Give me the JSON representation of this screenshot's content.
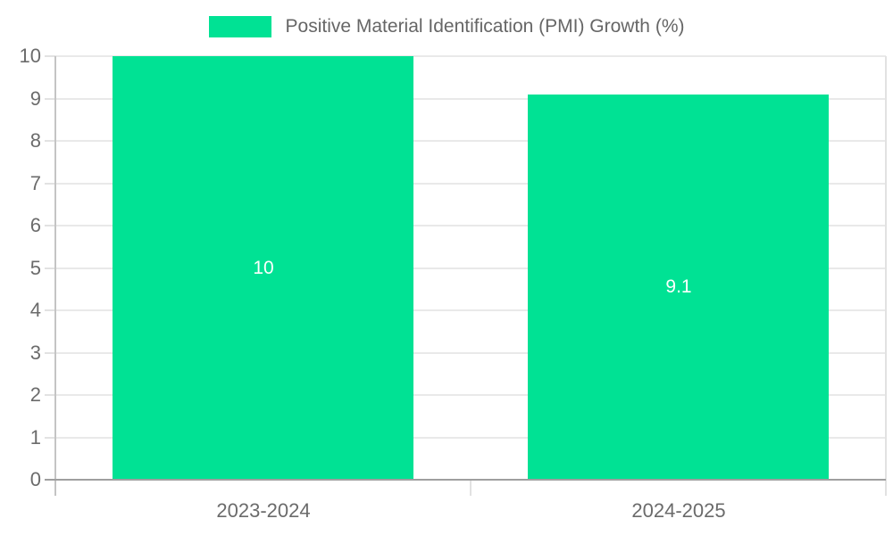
{
  "chart_data": {
    "type": "bar",
    "title": "",
    "legend": {
      "label": "Positive Material Identification (PMI) Growth (%)",
      "position": "top",
      "marker": "rect"
    },
    "categories": [
      "2023-2024",
      "2024-2025"
    ],
    "series": [
      {
        "name": "Positive Material Identification (PMI) Growth (%)",
        "values": [
          10,
          9.1
        ]
      }
    ],
    "bar_labels": [
      "10",
      "9.1"
    ],
    "xlabel": "",
    "ylabel": "",
    "ylim": [
      0,
      10
    ],
    "yticks": [
      0,
      1,
      2,
      3,
      4,
      5,
      6,
      7,
      8,
      9,
      10
    ],
    "grid": true,
    "colors": {
      "bar": "#00E294",
      "bar_label": "#FFFFFF",
      "axis_text": "#6B6B6B",
      "legend_text": "#666666",
      "gridline": "#E9E9E9",
      "tick_line": "#E2E2E2",
      "axis_line_x": "#9F9F9F",
      "axis_line_y": "#C4C4C4"
    }
  }
}
